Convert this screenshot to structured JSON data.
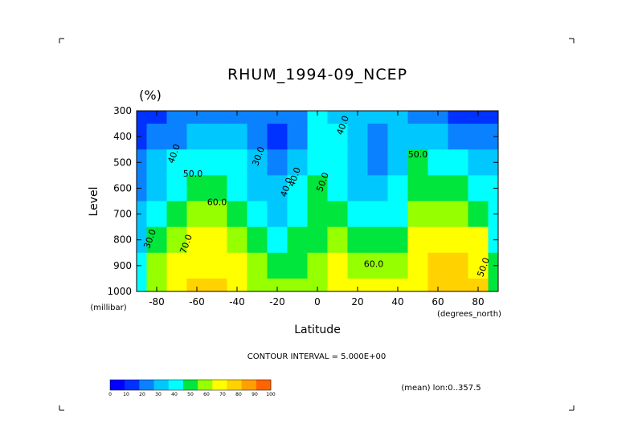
{
  "title": "RHUM_1994-09_NCEP",
  "units_label": "(%)",
  "y_axis_label": "Level",
  "y_units_label": "(millibar)",
  "x_axis_label": "Latitude",
  "x_units_label": "(degrees_north)",
  "contour_interval_text": "CONTOUR INTERVAL = 5.000E+00",
  "mean_note": "(mean) lon:0..357.5",
  "chart_data": {
    "type": "heatmap",
    "title": "RHUM_1994-09_NCEP",
    "xlabel": "Latitude",
    "ylabel": "Level",
    "x_units": "(degrees_north)",
    "y_units": "(millibar)",
    "xlim": [
      -90,
      90
    ],
    "ylim": [
      1000,
      300
    ],
    "y_inverted": true,
    "x_ticks": [
      "-80",
      "-60",
      "-40",
      "-20",
      "0",
      "20",
      "40",
      "60",
      "80"
    ],
    "x_tick_values": [
      -80,
      -60,
      -40,
      -20,
      0,
      20,
      40,
      60,
      80
    ],
    "y_ticks": [
      "300",
      "400",
      "500",
      "600",
      "700",
      "800",
      "900",
      "1000"
    ],
    "y_tick_values": [
      300,
      400,
      500,
      600,
      700,
      800,
      900,
      1000
    ],
    "contour_interval": 5,
    "levels_mb": [
      300,
      400,
      500,
      600,
      700,
      800,
      900,
      1000
    ],
    "lat_cols": [
      -90,
      -80,
      -70,
      -60,
      -50,
      -40,
      -30,
      -20,
      -10,
      0,
      10,
      20,
      30,
      40,
      50,
      60,
      70,
      80,
      90
    ],
    "values": [
      [
        10,
        15,
        20,
        22,
        25,
        28,
        25,
        20,
        22,
        40,
        35,
        30,
        30,
        30,
        25,
        20,
        15,
        12,
        10
      ],
      [
        15,
        20,
        25,
        30,
        32,
        35,
        20,
        15,
        25,
        45,
        40,
        30,
        25,
        30,
        35,
        30,
        25,
        20,
        20
      ],
      [
        20,
        30,
        40,
        42,
        45,
        40,
        30,
        20,
        35,
        48,
        45,
        32,
        28,
        35,
        50,
        45,
        40,
        35,
        30
      ],
      [
        25,
        35,
        45,
        50,
        55,
        45,
        35,
        30,
        40,
        52,
        48,
        38,
        35,
        42,
        55,
        55,
        50,
        45,
        40
      ],
      [
        30,
        45,
        55,
        62,
        62,
        55,
        40,
        35,
        45,
        52,
        50,
        45,
        42,
        48,
        62,
        62,
        60,
        55,
        45
      ],
      [
        35,
        55,
        68,
        72,
        70,
        65,
        50,
        40,
        50,
        58,
        62,
        55,
        50,
        58,
        70,
        72,
        75,
        70,
        45
      ],
      [
        40,
        60,
        75,
        78,
        78,
        72,
        62,
        55,
        58,
        65,
        70,
        65,
        62,
        68,
        75,
        80,
        80,
        78,
        50
      ],
      [
        40,
        62,
        78,
        80,
        82,
        76,
        68,
        62,
        65,
        68,
        72,
        70,
        70,
        74,
        78,
        82,
        82,
        80,
        50
      ]
    ],
    "colorbar": {
      "ticks": [
        "0",
        "10",
        "20",
        "30",
        "40",
        "50",
        "60",
        "70",
        "80",
        "90",
        "100"
      ],
      "colors": [
        "#a000c8",
        "#0000ff",
        "#0032ff",
        "#0a82ff",
        "#00c8ff",
        "#00ffff",
        "#00e63c",
        "#96ff00",
        "#ffff00",
        "#ffd200",
        "#ffa000",
        "#ff6400",
        "#ff0000"
      ]
    },
    "contour_labels": [
      "30.0",
      "40.0",
      "50.0",
      "60.0",
      "70.0",
      "30.0",
      "40.0",
      "50.0",
      "40.0",
      "50.0",
      "60.0",
      "50.0",
      "40.0"
    ]
  }
}
